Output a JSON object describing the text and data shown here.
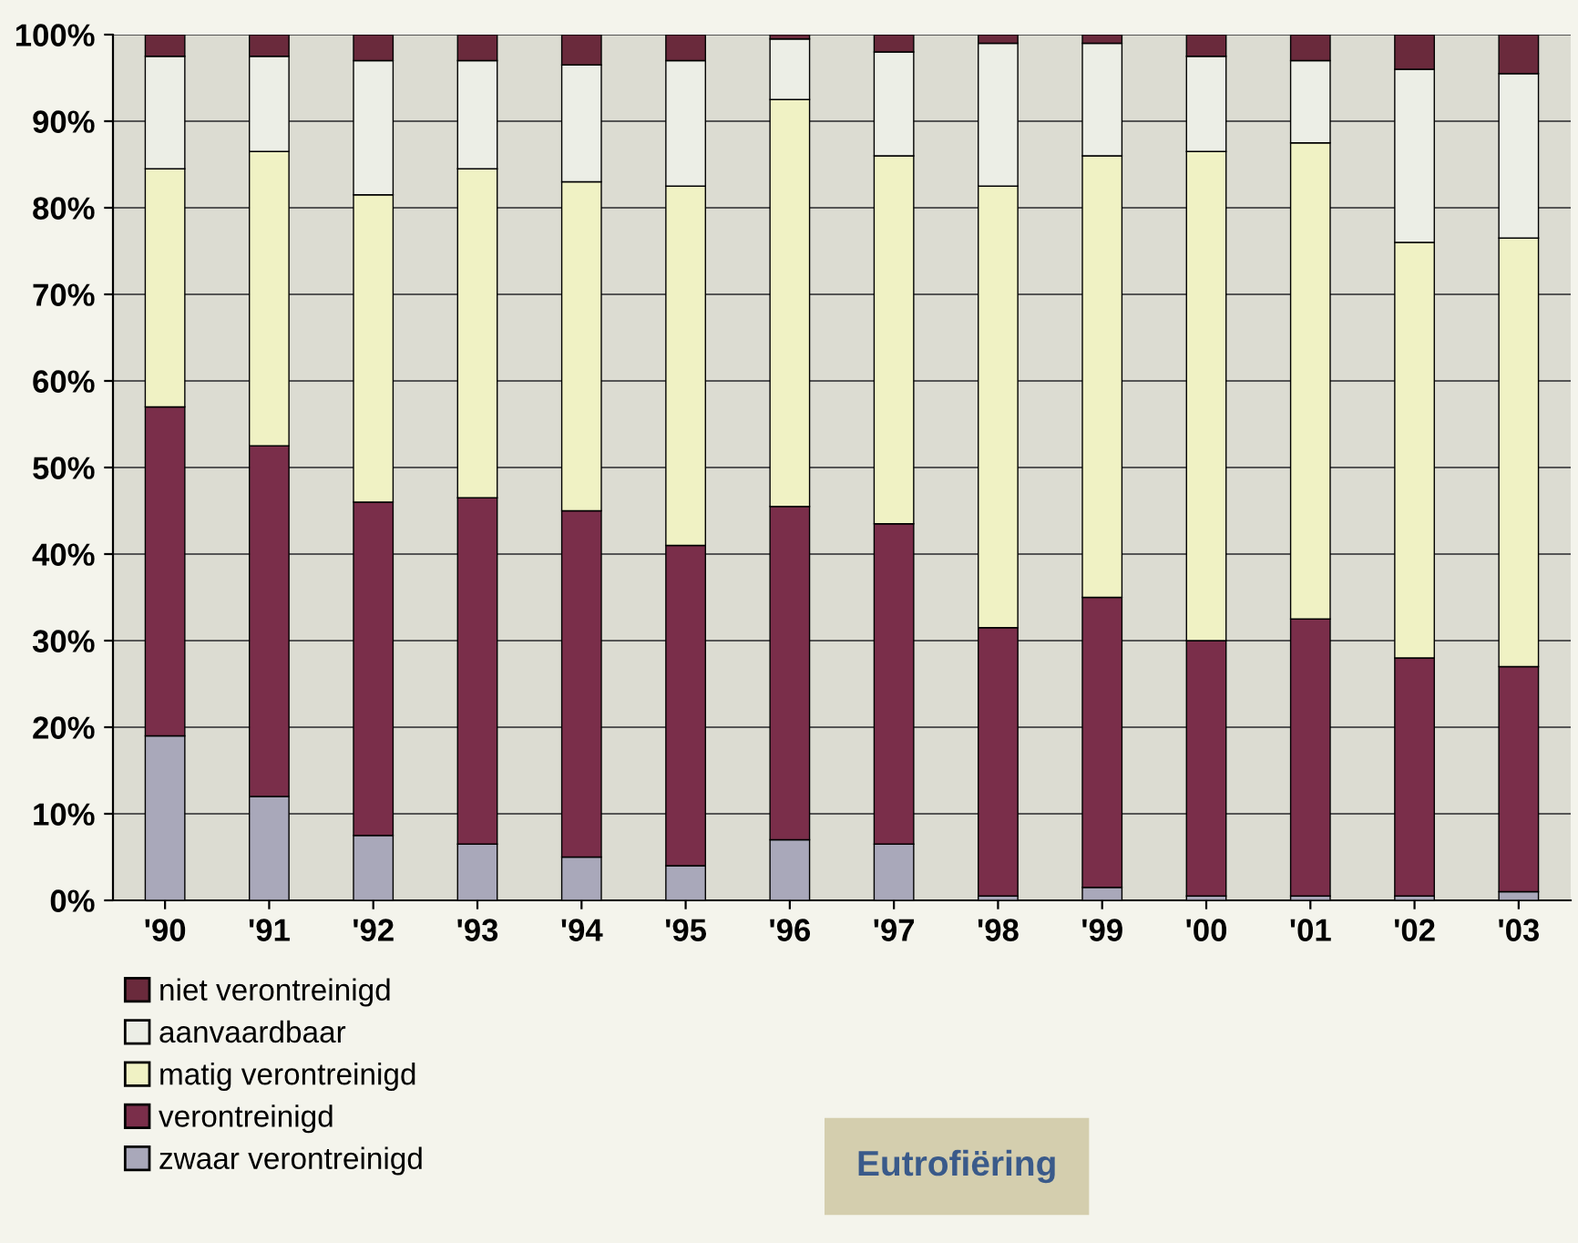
{
  "chart_data": {
    "type": "bar",
    "stacked": true,
    "categories": [
      "'90",
      "'91",
      "'92",
      "'93",
      "'94",
      "'95",
      "'96",
      "'97",
      "'98",
      "'99",
      "'00",
      "'01",
      "'02",
      "'03"
    ],
    "series": [
      {
        "name": "zwaar verontreinigd",
        "color": "#a9a8ba",
        "values": [
          19,
          12,
          7.5,
          6.5,
          5,
          4,
          7,
          6.5,
          0.5,
          1.5,
          0.5,
          0.5,
          0.5,
          1
        ]
      },
      {
        "name": "verontreinigd",
        "color": "#7a2e4a",
        "values": [
          38,
          40.5,
          38.5,
          40,
          40,
          37,
          38.5,
          37,
          31,
          33.5,
          29.5,
          32,
          27.5,
          26
        ]
      },
      {
        "name": "matig verontreinigd",
        "color": "#f0f2c4",
        "values": [
          27.5,
          34,
          35.5,
          38,
          38,
          41.5,
          47,
          42.5,
          51,
          51,
          56.5,
          55,
          48,
          49.5
        ]
      },
      {
        "name": "aanvaardbaar",
        "color": "#eceee6",
        "values": [
          13,
          11,
          15.5,
          12.5,
          13.5,
          14.5,
          7,
          12,
          16.5,
          13,
          11,
          9.5,
          20,
          19
        ]
      },
      {
        "name": "niet verontreinigd",
        "color": "#6a2a3c",
        "values": [
          2.5,
          2.5,
          3,
          3,
          3.5,
          3,
          0.5,
          2,
          1,
          1,
          2.5,
          3,
          4,
          4.5
        ]
      }
    ],
    "ylim": [
      0,
      100
    ],
    "yticks": [
      {
        "value": 0,
        "label": "0%"
      },
      {
        "value": 10,
        "label": "10%"
      },
      {
        "value": 20,
        "label": "20%"
      },
      {
        "value": 30,
        "label": "30%"
      },
      {
        "value": 40,
        "label": "40%"
      },
      {
        "value": 50,
        "label": "50%"
      },
      {
        "value": 60,
        "label": "60%"
      },
      {
        "value": 70,
        "label": "70%"
      },
      {
        "value": 80,
        "label": "80%"
      },
      {
        "value": 90,
        "label": "90%"
      },
      {
        "value": 100,
        "label": "100%"
      }
    ],
    "grid": "y",
    "legend": "bottom left",
    "annotations": [
      "Eutrofiëring"
    ]
  }
}
